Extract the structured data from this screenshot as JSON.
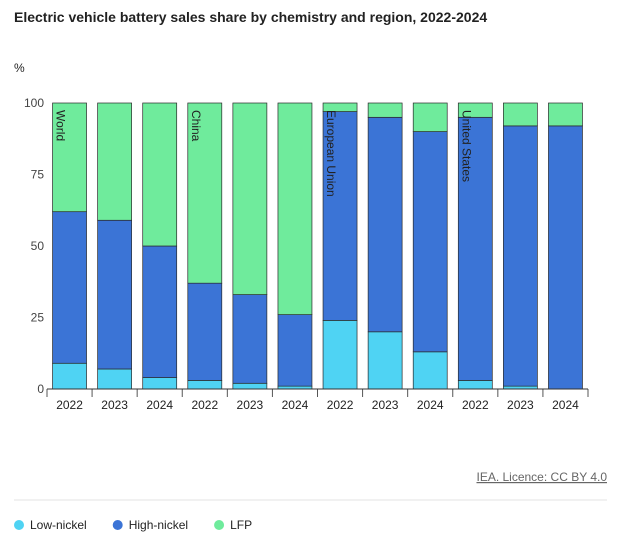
{
  "chart_data": {
    "type": "stacked_bar",
    "title": "Electric vehicle battery sales share by chemistry and region, 2022-2024",
    "y_label": "%",
    "groups": [
      "World",
      "China",
      "European Union",
      "United States"
    ],
    "categories": [
      "2022",
      "2023",
      "2024",
      "2022",
      "2023",
      "2024",
      "2022",
      "2023",
      "2024",
      "2022",
      "2023",
      "2024"
    ],
    "series": [
      {
        "name": "Low-nickel",
        "color": "#4fd3f3",
        "values": [
          9,
          7,
          4,
          3,
          2,
          1,
          24,
          20,
          13,
          3,
          1,
          0
        ]
      },
      {
        "name": "High-nickel",
        "color": "#3b74d6",
        "values": [
          53,
          52,
          46,
          34,
          31,
          25,
          73,
          75,
          77,
          92,
          91,
          92
        ]
      },
      {
        "name": "LFP",
        "color": "#6feb9c",
        "values": [
          38,
          41,
          50,
          63,
          67,
          74,
          3,
          5,
          10,
          5,
          8,
          8
        ]
      }
    ],
    "ylim": [
      0,
      100
    ],
    "yticks": [
      0,
      25,
      50,
      75,
      100
    ],
    "source": "IEA. Licence: CC BY 4.0"
  }
}
